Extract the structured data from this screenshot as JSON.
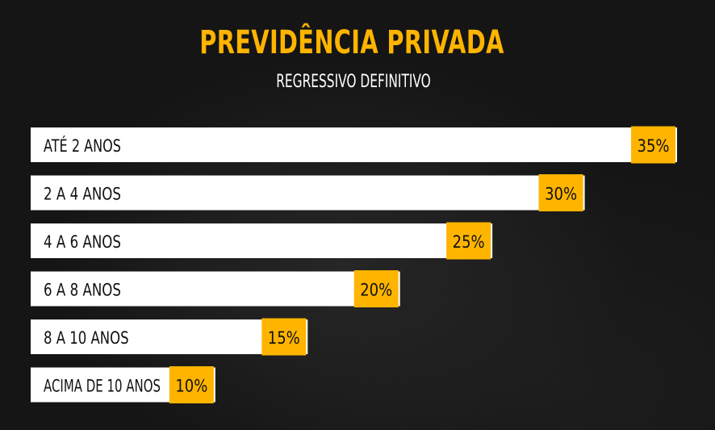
{
  "header": {
    "title": "PREVIDÊNCIA PRIVADA",
    "subtitle": "REGRESSIVO DEFINITIVO"
  },
  "colors": {
    "background": "#151515",
    "bar": "#ffffff",
    "accent": "#ffb400",
    "text": "#111111"
  },
  "chart_data": {
    "type": "bar",
    "orientation": "horizontal",
    "title": "PREVIDÊNCIA PRIVADA",
    "subtitle": "REGRESSIVO DEFINITIVO",
    "categories": [
      "ATÉ 2 ANOS",
      "2 A 4 ANOS",
      "4 A 6 ANOS",
      "6 A 8 ANOS",
      "8 A 10 ANOS",
      "ACIMA DE 10 ANOS"
    ],
    "values": [
      35,
      30,
      25,
      20,
      15,
      10
    ],
    "value_labels": [
      "35%",
      "30%",
      "25%",
      "20%",
      "15%",
      "10%"
    ],
    "xlim": [
      0,
      35
    ],
    "grid": false,
    "legend": "none"
  }
}
